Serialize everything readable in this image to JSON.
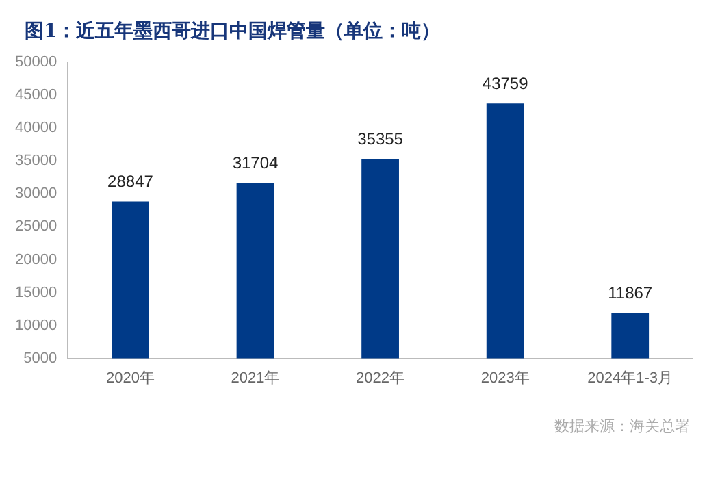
{
  "chart_data": {
    "type": "bar",
    "title": "图1：近五年墨西哥进口中国焊管量（单位：吨）",
    "categories": [
      "2020年",
      "2021年",
      "2022年",
      "2023年",
      "2024年1-3月"
    ],
    "values": [
      28847,
      31704,
      35355,
      43759,
      11867
    ],
    "color": "#003a88",
    "ylim": [
      5000,
      50000
    ],
    "yticks": [
      5000,
      10000,
      15000,
      20000,
      25000,
      30000,
      35000,
      40000,
      45000,
      50000
    ],
    "grid": false,
    "legend": false,
    "data_labels": true,
    "annotations": [
      "数据来源：海关总署"
    ]
  }
}
